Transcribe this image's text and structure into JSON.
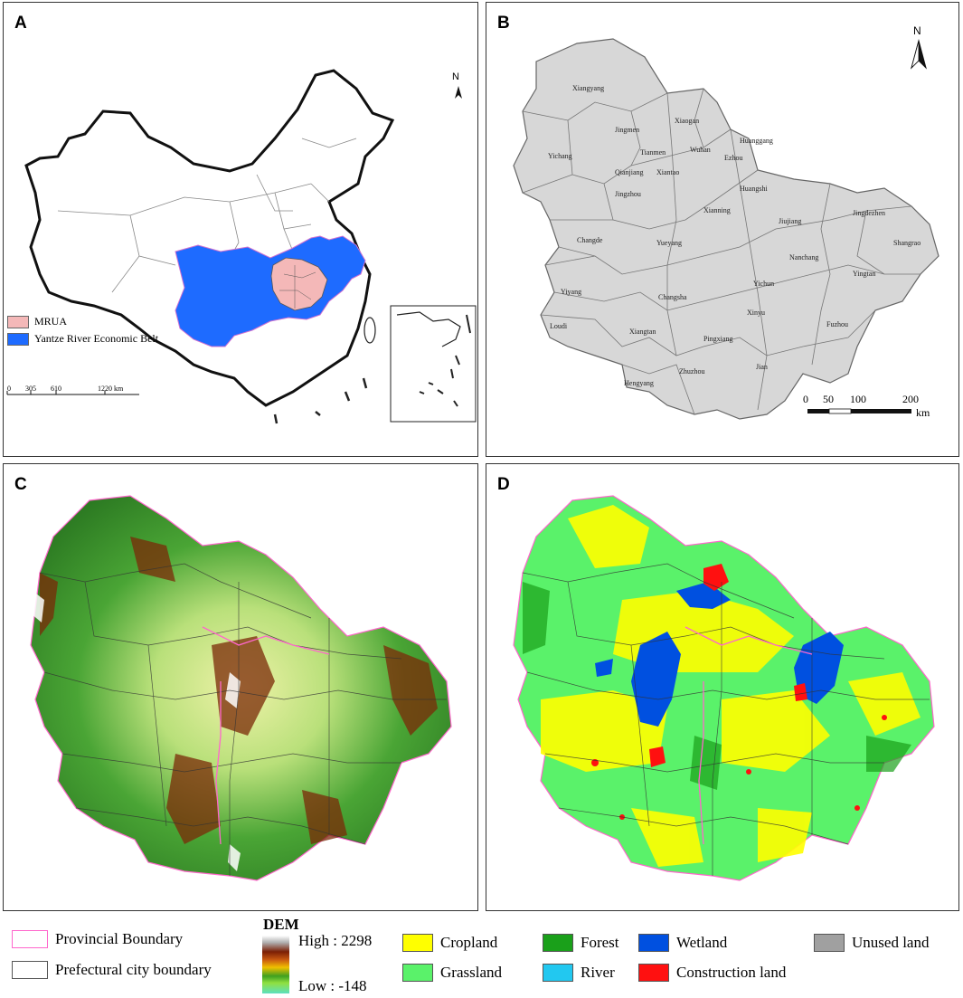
{
  "panels": {
    "a": "A",
    "b": "B",
    "c": "C",
    "d": "D"
  },
  "north_label": "N",
  "panel_a": {
    "legend": [
      {
        "label": "MRUA",
        "color": "#f4b8b8"
      },
      {
        "label": "Yantze River Economic Belt",
        "color": "#1e6bff"
      }
    ],
    "scale_ticks": [
      "0",
      "305",
      "610",
      "1220 km"
    ]
  },
  "panel_b": {
    "cities": [
      "Xiangyang",
      "Jingmen",
      "Xiaogan",
      "Huanggang",
      "Yichang",
      "Tianmen",
      "Wuhan",
      "Ezhou",
      "Qianjiang",
      "Xiantao",
      "Huangshi",
      "Jingzhou",
      "Xianning",
      "Jiujiang",
      "Jingdezhen",
      "Shangrao",
      "Changde",
      "Yueyang",
      "Nanchang",
      "Yingtan",
      "Yiyang",
      "Changsha",
      "Yichun",
      "Loudi",
      "Xiangtan",
      "Xinyu",
      "Fuzhou",
      "Pingxiang",
      "Hengyang",
      "Zhuzhou",
      "Jian"
    ],
    "scale_ticks": [
      "0",
      "50",
      "100",
      "200"
    ],
    "scale_unit": "km"
  },
  "legend": {
    "provincial": "Provincial Boundary",
    "prefectural": "Prefectural city boundary",
    "dem_title": "DEM",
    "dem_high": "High : 2298",
    "dem_low": "Low : -148",
    "classes": [
      {
        "label": "Cropland",
        "color": "#ffff00"
      },
      {
        "label": "Forest",
        "color": "#1aa01a"
      },
      {
        "label": "Wetland",
        "color": "#0050e0"
      },
      {
        "label": "Unused land",
        "color": "#a0a0a0"
      },
      {
        "label": "Grassland",
        "color": "#5af26a"
      },
      {
        "label": "River",
        "color": "#22c8f0"
      },
      {
        "label": "Construction land",
        "color": "#ff1010"
      }
    ],
    "colors": {
      "provincial": "#ff66cc",
      "prefectural": "#555555"
    }
  }
}
